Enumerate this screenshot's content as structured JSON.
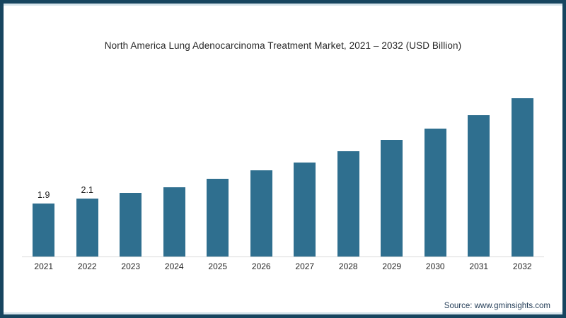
{
  "title": "North America Lung Adenocarcinoma Treatment Market, 2021 – 2032 (USD Billion)",
  "source": "Source: www.gminsights.com",
  "colors": {
    "bar": "#2f6f8f",
    "frame_border": "#17455f",
    "frame_inner_line": "#d7e5ec",
    "axis_line": "#d9d9d9",
    "title_text": "#262626",
    "value_label_text": "#1a1a1a",
    "tick_text": "#262626",
    "source_text": "#27405a"
  },
  "chart_data": {
    "type": "bar",
    "title": "North America Lung Adenocarcinoma Treatment Market, 2021 – 2032 (USD Billion)",
    "categories": [
      "2021",
      "2022",
      "2023",
      "2024",
      "2025",
      "2026",
      "2027",
      "2028",
      "2029",
      "2030",
      "2031",
      "2032"
    ],
    "values": [
      1.9,
      2.1,
      2.3,
      2.5,
      2.8,
      3.1,
      3.4,
      3.8,
      4.2,
      4.6,
      5.1,
      5.7
    ],
    "value_labels": [
      "1.9",
      "2.1",
      "",
      "",
      "",
      "",
      "",
      "",
      "",
      "",
      "",
      ""
    ],
    "xlabel": "",
    "ylabel": "USD Billion",
    "ylim": [
      0,
      6.7
    ],
    "grid": false,
    "legend": false
  }
}
